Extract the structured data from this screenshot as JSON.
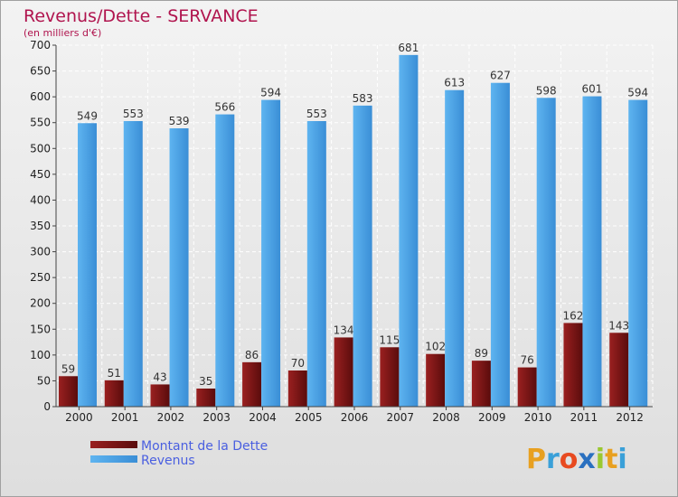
{
  "chart_data": {
    "type": "bar",
    "title": "Revenus/Dette - SERVANCE",
    "subtitle": "(en milliers d'€)",
    "categories": [
      "2000",
      "2001",
      "2002",
      "2003",
      "2004",
      "2005",
      "2006",
      "2007",
      "2008",
      "2009",
      "2010",
      "2011",
      "2012"
    ],
    "series": [
      {
        "name": "Montant de la Dette",
        "color": "#7a1414",
        "values": [
          59,
          51,
          43,
          35,
          86,
          70,
          134,
          115,
          102,
          89,
          76,
          162,
          143
        ]
      },
      {
        "name": "Revenus",
        "color": "#4aa3e6",
        "values": [
          549,
          553,
          539,
          566,
          594,
          553,
          583,
          681,
          613,
          627,
          598,
          601,
          594
        ]
      }
    ],
    "ylim": [
      0,
      700
    ],
    "yticks": [
      0,
      50,
      100,
      150,
      200,
      250,
      300,
      350,
      400,
      450,
      500,
      550,
      600,
      650,
      700
    ],
    "grid": true,
    "legend_position": "bottom-left"
  },
  "logo": {
    "letters": [
      "P",
      "r",
      "o",
      "x",
      "i",
      "t",
      "i"
    ],
    "colors": [
      "#e8a020",
      "#3aa0d8",
      "#e84a20",
      "#2a70c0",
      "#9ac830",
      "#e8a020",
      "#3aa0d8"
    ]
  }
}
